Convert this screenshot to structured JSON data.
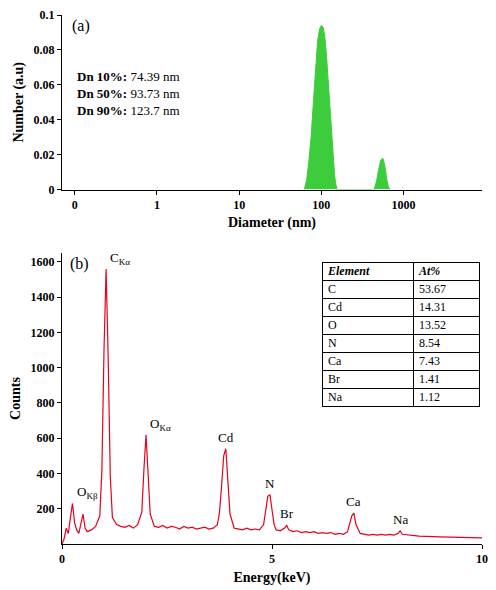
{
  "chart_data": [
    {
      "type": "area",
      "title": "(a)",
      "x_label": "Diameter (nm)",
      "y_label": "Number (a.u)",
      "log": "x",
      "grid": false,
      "color": "#3ccc3c",
      "x": [
        62,
        66,
        70,
        75,
        80,
        85,
        90,
        95,
        100,
        105,
        110,
        115,
        120,
        125,
        130,
        135,
        140,
        145,
        150,
        155,
        440,
        470,
        500,
        530,
        560,
        590,
        620,
        650,
        680
      ],
      "values": [
        0,
        0.005,
        0.015,
        0.03,
        0.05,
        0.07,
        0.085,
        0.092,
        0.094,
        0.093,
        0.088,
        0.078,
        0.065,
        0.05,
        0.037,
        0.025,
        0.015,
        0.008,
        0.003,
        0,
        0,
        0.005,
        0.012,
        0.017,
        0.018,
        0.014,
        0.007,
        0.002,
        0
      ],
      "xlim": [
        0.07,
        9000
      ],
      "xticks": [
        {
          "value": 0.1,
          "label": "0"
        },
        1,
        10,
        100,
        1000
      ],
      "ylim": [
        0,
        0.1
      ],
      "yticks": [
        0,
        0.02,
        0.04,
        0.06,
        0.08,
        0.1
      ],
      "annotations": [
        {
          "label": "Dn 10%:",
          "value": "74.39 nm"
        },
        {
          "label": "Dn 50%:",
          "value": "93.73 nm"
        },
        {
          "label": "Dn 90%:",
          "value": "123.7 nm"
        }
      ]
    },
    {
      "type": "line",
      "title": "(b)",
      "x_label": "Energy(keV)",
      "y_label": "Counts",
      "grid": false,
      "color": "#e8001c",
      "x": [
        0,
        0.05,
        0.1,
        0.15,
        0.2,
        0.25,
        0.3,
        0.35,
        0.4,
        0.45,
        0.5,
        0.55,
        0.6,
        0.7,
        0.8,
        0.9,
        0.95,
        1.0,
        1.05,
        1.1,
        1.15,
        1.2,
        1.3,
        1.4,
        1.5,
        1.6,
        1.7,
        1.8,
        1.9,
        1.95,
        2.0,
        2.05,
        2.1,
        2.2,
        2.3,
        2.4,
        2.5,
        2.6,
        2.7,
        2.8,
        2.9,
        3.0,
        3.1,
        3.2,
        3.3,
        3.4,
        3.5,
        3.6,
        3.7,
        3.75,
        3.8,
        3.85,
        3.9,
        3.95,
        4.0,
        4.1,
        4.2,
        4.3,
        4.4,
        4.5,
        4.6,
        4.7,
        4.8,
        4.85,
        4.9,
        4.95,
        5.0,
        5.05,
        5.1,
        5.2,
        5.3,
        5.35,
        5.4,
        5.5,
        5.6,
        5.7,
        5.8,
        5.9,
        6.0,
        6.1,
        6.2,
        6.3,
        6.4,
        6.5,
        6.6,
        6.7,
        6.8,
        6.85,
        6.9,
        6.95,
        7.0,
        7.1,
        7.2,
        7.3,
        7.4,
        7.5,
        7.6,
        7.7,
        7.8,
        7.9,
        8.0,
        8.05,
        8.1,
        8.5,
        9.0,
        9.5,
        10.0
      ],
      "values": [
        0,
        30,
        90,
        60,
        150,
        230,
        120,
        80,
        60,
        110,
        170,
        90,
        70,
        80,
        100,
        160,
        420,
        1100,
        1560,
        1050,
        380,
        150,
        110,
        100,
        95,
        105,
        90,
        110,
        180,
        420,
        620,
        400,
        170,
        100,
        95,
        105,
        90,
        100,
        95,
        85,
        100,
        90,
        95,
        85,
        90,
        95,
        85,
        90,
        110,
        180,
        330,
        500,
        540,
        380,
        170,
        90,
        85,
        80,
        90,
        80,
        85,
        80,
        110,
        190,
        270,
        280,
        190,
        110,
        80,
        75,
        90,
        105,
        80,
        70,
        75,
        65,
        70,
        65,
        70,
        60,
        65,
        60,
        65,
        55,
        60,
        55,
        70,
        120,
        160,
        175,
        110,
        60,
        55,
        50,
        55,
        50,
        55,
        50,
        55,
        50,
        60,
        75,
        55,
        45,
        40,
        38,
        35
      ],
      "xlim": [
        0,
        10
      ],
      "xticks": [
        0,
        5,
        10
      ],
      "ylim": [
        0,
        1650
      ],
      "yticks": [
        200,
        400,
        600,
        800,
        1000,
        1200,
        1400,
        1600
      ],
      "annotations": [
        {
          "text": "C",
          "sub": "Kα",
          "x": 1.05
        },
        {
          "text": "O",
          "sub": "Kα",
          "x": 2.0
        },
        {
          "text": "O",
          "sub": "Kβ",
          "x": 0.25
        },
        {
          "text": "Cd",
          "x": 3.9
        },
        {
          "text": "N",
          "x": 4.95
        },
        {
          "text": "Br",
          "x": 5.35
        },
        {
          "text": "Ca",
          "x": 6.95
        },
        {
          "text": "Na",
          "x": 8.05
        }
      ],
      "table": {
        "header": [
          "Element",
          "At%"
        ],
        "rows": [
          [
            "C",
            53.67
          ],
          [
            "Cd",
            14.31
          ],
          [
            "O",
            13.52
          ],
          [
            "N",
            8.54
          ],
          [
            "Ca",
            7.43
          ],
          [
            "Br",
            1.41
          ],
          [
            "Na",
            1.12
          ]
        ]
      }
    }
  ]
}
